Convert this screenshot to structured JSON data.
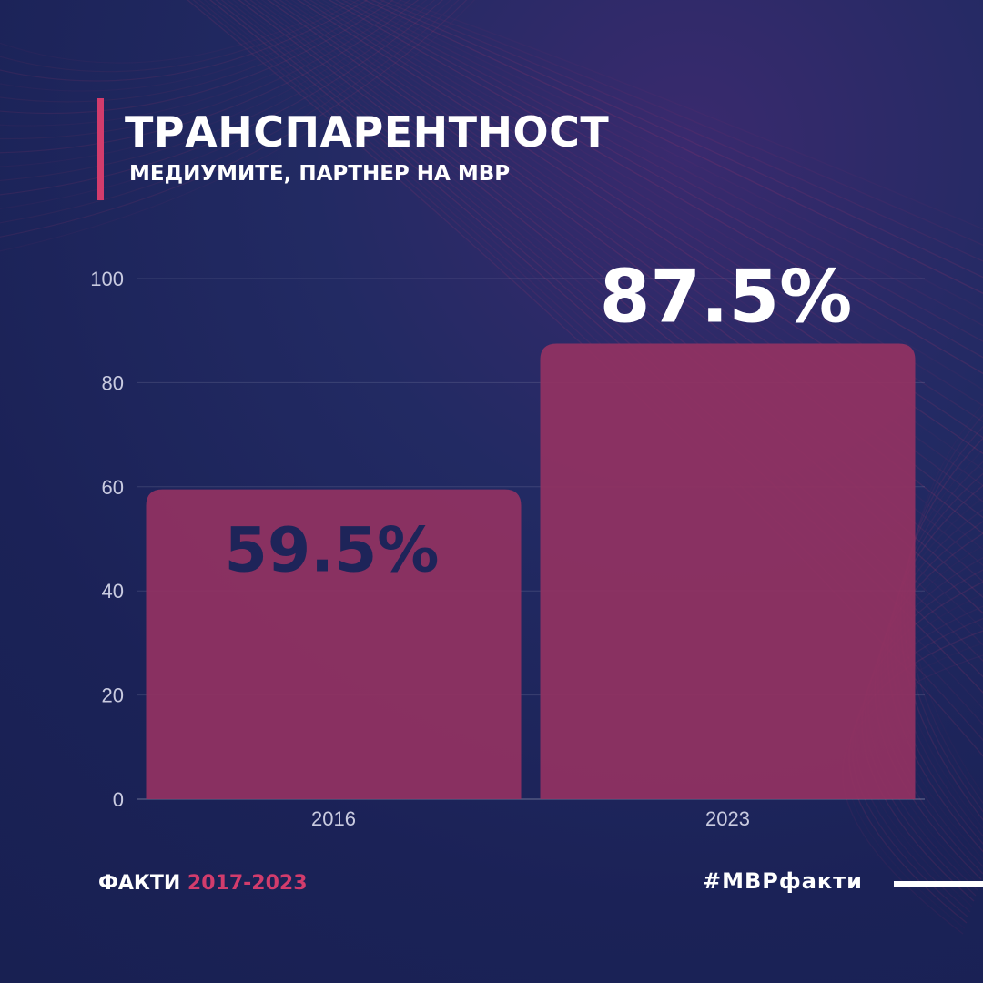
{
  "header": {
    "title": "ТРАНСПАРЕНТНОСТ",
    "subtitle": "МЕДИУМИТЕ, ПАРТНЕР НА МВР"
  },
  "footer": {
    "label": "ФАКТИ",
    "years": "2017-2023",
    "hashtag": "#МВРфакти"
  },
  "colors": {
    "background": "#1d2459",
    "accent": "#d23c6c",
    "bar": "#923262",
    "label_dark": "#1e2459",
    "label_light": "#ffffff",
    "axis_text": "#c9cbe0"
  },
  "chart_data": {
    "type": "bar",
    "categories": [
      "2016",
      "2023"
    ],
    "values": [
      59.5,
      87.5
    ],
    "data_labels": [
      "59.5%",
      "87.5%"
    ],
    "ylim": [
      0,
      100
    ],
    "yticks": [
      0,
      20,
      40,
      60,
      80,
      100
    ],
    "grid": true,
    "legend": "none"
  }
}
